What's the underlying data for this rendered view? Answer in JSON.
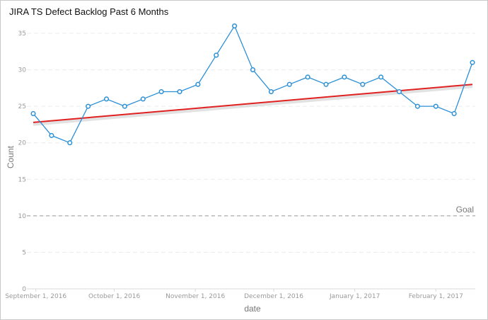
{
  "title": "JIRA TS Defect Backlog Past 6 Months",
  "chart_data": {
    "type": "line",
    "title": "JIRA TS Defect Backlog Past 6 Months",
    "xlabel": "date",
    "ylabel": "Count",
    "ylim": [
      0,
      35
    ],
    "yticks": [
      0,
      5,
      10,
      15,
      20,
      25,
      30,
      35
    ],
    "grid": true,
    "x_range": [
      "2016-08-31",
      "2017-02-28"
    ],
    "xticks": [
      {
        "date": "2016-09-01",
        "label": "September 1, 2016"
      },
      {
        "date": "2016-10-01",
        "label": "October 1, 2016"
      },
      {
        "date": "2016-11-01",
        "label": "November 1, 2016"
      },
      {
        "date": "2016-12-01",
        "label": "December 1, 2016"
      },
      {
        "date": "2017-01-01",
        "label": "January 1, 2017"
      },
      {
        "date": "2017-02-01",
        "label": "February 1, 2017"
      }
    ],
    "series": [
      {
        "color": "#2b8fd6",
        "points": [
          {
            "x": "2016-08-31",
            "y": 24
          },
          {
            "x": "2016-09-07",
            "y": 21
          },
          {
            "x": "2016-09-14",
            "y": 20
          },
          {
            "x": "2016-09-21",
            "y": 25
          },
          {
            "x": "2016-09-28",
            "y": 26
          },
          {
            "x": "2016-10-05",
            "y": 25
          },
          {
            "x": "2016-10-12",
            "y": 26
          },
          {
            "x": "2016-10-19",
            "y": 27
          },
          {
            "x": "2016-10-26",
            "y": 27
          },
          {
            "x": "2016-11-02",
            "y": 28
          },
          {
            "x": "2016-11-09",
            "y": 32
          },
          {
            "x": "2016-11-16",
            "y": 36
          },
          {
            "x": "2016-11-23",
            "y": 30
          },
          {
            "x": "2016-11-30",
            "y": 27
          },
          {
            "x": "2016-12-07",
            "y": 28
          },
          {
            "x": "2016-12-14",
            "y": 29
          },
          {
            "x": "2016-12-21",
            "y": 28
          },
          {
            "x": "2016-12-28",
            "y": 29
          },
          {
            "x": "2017-01-04",
            "y": 28
          },
          {
            "x": "2017-01-11",
            "y": 29
          },
          {
            "x": "2017-01-18",
            "y": 27
          },
          {
            "x": "2017-01-25",
            "y": 25
          },
          {
            "x": "2017-02-01",
            "y": 25
          },
          {
            "x": "2017-02-08",
            "y": 24
          },
          {
            "x": "2017-02-15",
            "y": 31
          }
        ]
      }
    ],
    "trend_line": {
      "color": "#e02020",
      "start": {
        "x": "2016-08-31",
        "y": 22.8
      },
      "end": {
        "x": "2017-02-15",
        "y": 28.0
      }
    },
    "goal_line": {
      "label": "Goal",
      "y": 10,
      "color": "#999999"
    }
  }
}
